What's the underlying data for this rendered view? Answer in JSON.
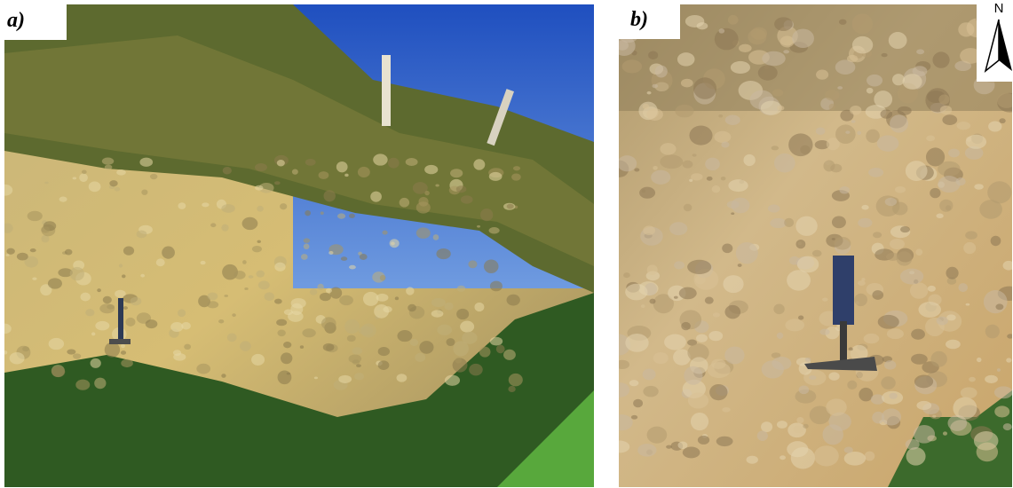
{
  "panels": [
    {
      "label": "a)"
    },
    {
      "label": "b)"
    }
  ],
  "north_arrow": {
    "label": "N"
  }
}
